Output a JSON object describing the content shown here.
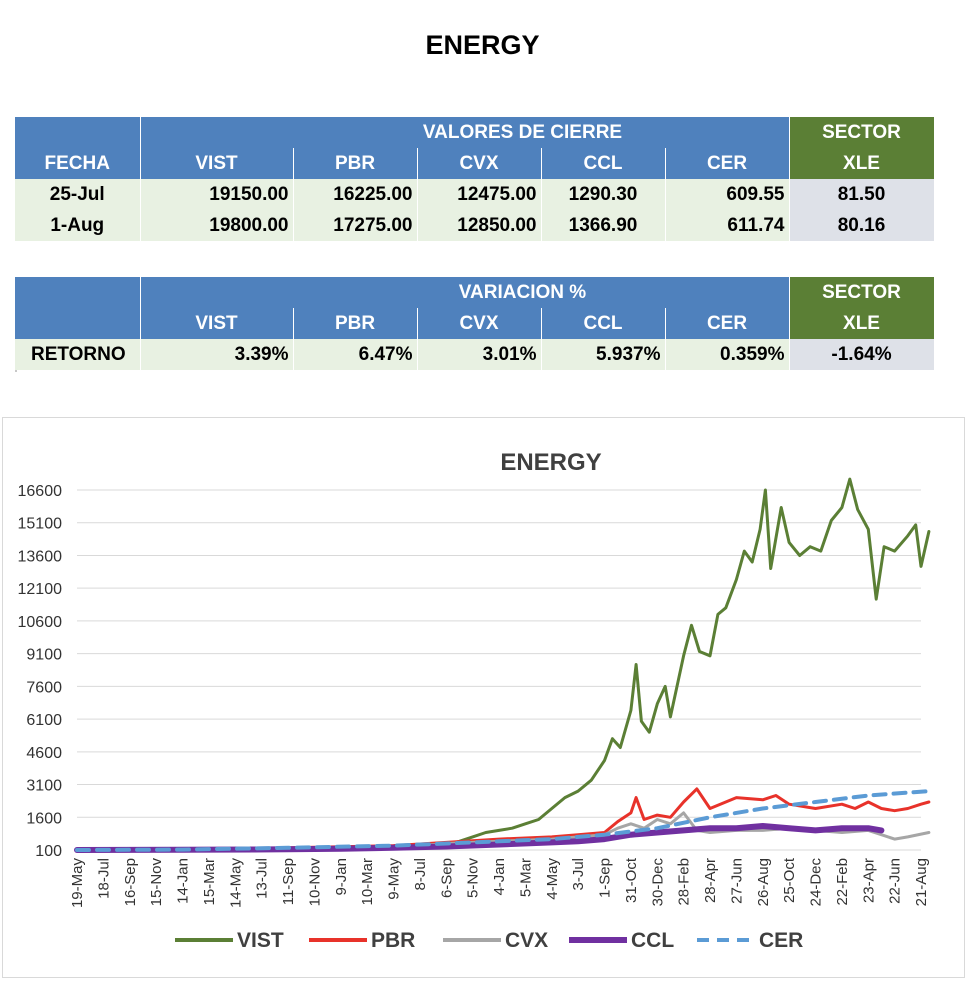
{
  "page": {
    "title": "ENERGY"
  },
  "closing_table": {
    "group_header": "VALORES DE CIERRE",
    "sector_header": "SECTOR",
    "sector_ticker": "XLE",
    "columns": [
      "FECHA",
      "VIST",
      "PBR",
      "CVX",
      "CCL",
      "CER"
    ],
    "rows": [
      {
        "fecha": "25-Jul",
        "vist": "19150.00",
        "pbr": "16225.00",
        "cvx": "12475.00",
        "ccl": "1290.30",
        "cer": "609.55",
        "xle": "81.50"
      },
      {
        "fecha": "1-Aug",
        "vist": "19800.00",
        "pbr": "17275.00",
        "cvx": "12850.00",
        "ccl": "1366.90",
        "cer": "611.74",
        "xle": "80.16"
      }
    ]
  },
  "variation_table": {
    "group_header": "VARIACION %",
    "sector_header": "SECTOR",
    "sector_ticker": "XLE",
    "columns": [
      "VIST",
      "PBR",
      "CVX",
      "CCL",
      "CER"
    ],
    "row": {
      "label": "RETORNO",
      "vist": "3.39%",
      "pbr": "6.47%",
      "cvx": "3.01%",
      "ccl": "5.937%",
      "cer": "0.359%",
      "xle": "-1.64%"
    }
  },
  "chart_data": {
    "type": "line",
    "title": "ENERGY",
    "xlabel": "",
    "ylabel": "",
    "yticks": [
      100,
      1600,
      3100,
      4600,
      6100,
      7600,
      9100,
      10600,
      12100,
      13600,
      15100,
      16600
    ],
    "ylim": [
      100,
      16600
    ],
    "x_tick_labels": [
      "19-May",
      "18-Jul",
      "16-Sep",
      "15-Nov",
      "14-Jan",
      "15-Mar",
      "14-May",
      "13-Jul",
      "11-Sep",
      "10-Nov",
      "9-Jan",
      "10-Mar",
      "9-May",
      "8-Jul",
      "6-Sep",
      "5-Nov",
      "4-Jan",
      "5-Mar",
      "4-May",
      "3-Jul",
      "1-Sep",
      "31-Oct",
      "30-Dec",
      "28-Feb",
      "28-Apr",
      "27-Jun",
      "26-Aug",
      "25-Oct",
      "24-Dec",
      "22-Feb",
      "23-Apr",
      "22-Jun",
      "21-Aug"
    ],
    "grid": "horizontal",
    "legend_position": "bottom",
    "series": [
      {
        "name": "VIST",
        "color": "#5b7f35",
        "style": "solid",
        "values": [
          [
            0,
            100
          ],
          [
            2,
            110
          ],
          [
            4,
            105
          ],
          [
            6,
            130
          ],
          [
            8,
            150
          ],
          [
            10,
            180
          ],
          [
            12,
            220
          ],
          [
            13,
            250
          ],
          [
            14,
            350
          ],
          [
            14.5,
            500
          ],
          [
            15,
            700
          ],
          [
            15.5,
            900
          ],
          [
            16,
            1000
          ],
          [
            16.5,
            1100
          ],
          [
            17,
            1300
          ],
          [
            17.5,
            1500
          ],
          [
            18,
            2000
          ],
          [
            18.5,
            2500
          ],
          [
            19,
            2800
          ],
          [
            19.5,
            3300
          ],
          [
            20,
            4200
          ],
          [
            20.3,
            5200
          ],
          [
            20.6,
            4800
          ],
          [
            21,
            6500
          ],
          [
            21.2,
            8600
          ],
          [
            21.4,
            6000
          ],
          [
            21.7,
            5500
          ],
          [
            22,
            6800
          ],
          [
            22.3,
            7600
          ],
          [
            22.5,
            6200
          ],
          [
            23,
            9000
          ],
          [
            23.3,
            10400
          ],
          [
            23.6,
            9200
          ],
          [
            24,
            9000
          ],
          [
            24.3,
            10900
          ],
          [
            24.6,
            11200
          ],
          [
            25,
            12500
          ],
          [
            25.3,
            13800
          ],
          [
            25.6,
            13300
          ],
          [
            25.9,
            14800
          ],
          [
            26.1,
            16600
          ],
          [
            26.3,
            13000
          ],
          [
            26.7,
            15800
          ],
          [
            27,
            14200
          ],
          [
            27.4,
            13600
          ],
          [
            27.8,
            14000
          ],
          [
            28.2,
            13800
          ],
          [
            28.6,
            15200
          ],
          [
            29,
            15800
          ],
          [
            29.3,
            17100
          ],
          [
            29.6,
            15700
          ],
          [
            30,
            14800
          ],
          [
            30.3,
            11600
          ],
          [
            30.6,
            14000
          ],
          [
            31,
            13800
          ],
          [
            31.5,
            14500
          ],
          [
            31.8,
            15000
          ],
          [
            32,
            13100
          ],
          [
            32.3,
            14700
          ]
        ]
      },
      {
        "name": "PBR",
        "color": "#e8322a",
        "style": "solid",
        "values": [
          [
            0,
            100
          ],
          [
            4,
            120
          ],
          [
            6,
            150
          ],
          [
            8,
            200
          ],
          [
            10,
            250
          ],
          [
            12,
            300
          ],
          [
            14,
            450
          ],
          [
            16,
            600
          ],
          [
            18,
            700
          ],
          [
            19,
            800
          ],
          [
            20,
            900
          ],
          [
            20.5,
            1400
          ],
          [
            21,
            1800
          ],
          [
            21.2,
            2500
          ],
          [
            21.5,
            1500
          ],
          [
            22,
            1700
          ],
          [
            22.5,
            1600
          ],
          [
            23,
            2300
          ],
          [
            23.5,
            2900
          ],
          [
            24,
            2000
          ],
          [
            25,
            2500
          ],
          [
            26,
            2400
          ],
          [
            26.5,
            2600
          ],
          [
            27,
            2200
          ],
          [
            28,
            2000
          ],
          [
            29,
            2200
          ],
          [
            29.5,
            2000
          ],
          [
            30,
            2300
          ],
          [
            30.5,
            2000
          ],
          [
            31,
            1900
          ],
          [
            31.5,
            2000
          ],
          [
            32,
            2200
          ],
          [
            32.3,
            2300
          ]
        ]
      },
      {
        "name": "CVX",
        "color": "#a6a6a6",
        "style": "solid",
        "values": [
          [
            0,
            100
          ],
          [
            4,
            100
          ],
          [
            8,
            130
          ],
          [
            12,
            200
          ],
          [
            14,
            400
          ],
          [
            16,
            500
          ],
          [
            18,
            600
          ],
          [
            20,
            800
          ],
          [
            20.5,
            1100
          ],
          [
            21,
            1300
          ],
          [
            21.5,
            1100
          ],
          [
            22,
            1500
          ],
          [
            22.5,
            1300
          ],
          [
            23,
            1800
          ],
          [
            23.5,
            1000
          ],
          [
            24,
            900
          ],
          [
            25,
            1000
          ],
          [
            26,
            1000
          ],
          [
            27,
            1100
          ],
          [
            28,
            1000
          ],
          [
            29,
            900
          ],
          [
            30,
            1000
          ],
          [
            30.5,
            800
          ],
          [
            31,
            600
          ],
          [
            31.5,
            700
          ],
          [
            32.3,
            900
          ]
        ]
      },
      {
        "name": "CCL",
        "color": "#7030a0",
        "style": "solid",
        "values": [
          [
            0,
            100
          ],
          [
            4,
            110
          ],
          [
            8,
            130
          ],
          [
            10,
            160
          ],
          [
            12,
            200
          ],
          [
            14,
            260
          ],
          [
            16,
            350
          ],
          [
            18,
            450
          ],
          [
            19,
            500
          ],
          [
            20,
            600
          ],
          [
            21,
            800
          ],
          [
            22,
            900
          ],
          [
            23,
            1000
          ],
          [
            24,
            1100
          ],
          [
            25,
            1100
          ],
          [
            26,
            1200
          ],
          [
            27,
            1100
          ],
          [
            28,
            1000
          ],
          [
            29,
            1100
          ],
          [
            30,
            1100
          ],
          [
            30.5,
            1000
          ]
        ]
      },
      {
        "name": "CER",
        "color": "#5b9bd5",
        "style": "dashed",
        "values": [
          [
            0,
            100
          ],
          [
            4,
            120
          ],
          [
            8,
            200
          ],
          [
            12,
            300
          ],
          [
            14,
            400
          ],
          [
            16,
            500
          ],
          [
            18,
            600
          ],
          [
            20,
            800
          ],
          [
            22,
            1100
          ],
          [
            24,
            1600
          ],
          [
            26,
            2000
          ],
          [
            28,
            2300
          ],
          [
            30,
            2600
          ],
          [
            32.3,
            2800
          ]
        ]
      }
    ]
  }
}
